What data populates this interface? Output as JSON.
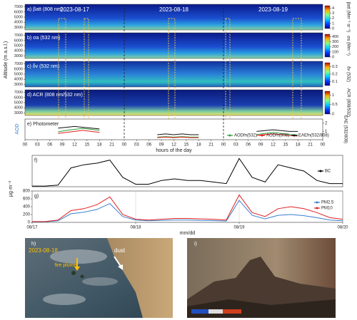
{
  "chart_data": [
    {
      "type": "heatmap",
      "ylabel": "Altitude (m a.s.l.)",
      "ylim": [
        2500,
        7500
      ],
      "yticks": [
        3000,
        4000,
        5000,
        6000,
        7000
      ],
      "dates": [
        "2023-08-17",
        "2023-08-18",
        "2023-08-19"
      ],
      "panels": [
        {
          "title": "a) βatt (808 nm)",
          "colorbar_label": "βatt (Mm⁻¹ sr⁻¹)",
          "clim": [
            0,
            4.5
          ],
          "cticks": [
            0,
            1,
            2,
            3,
            4
          ]
        },
        {
          "title": "b) σa (532 nm)",
          "colorbar_label": "σa (Mm⁻¹)",
          "clim": [
            0,
            450
          ],
          "cticks": [
            0,
            100,
            200,
            300,
            400
          ]
        },
        {
          "title": "c) δv (532 nm)",
          "colorbar_label": "δv (532)",
          "clim": [
            0.05,
            0.35
          ],
          "cticks": [
            0.1,
            0.2,
            0.3
          ]
        },
        {
          "title": "d) ACR (808 nm/532 nm)",
          "colorbar_label": "ACR (808/532)",
          "clim": [
            0,
            1.2
          ],
          "cticks": [
            0,
            0.5,
            1
          ]
        }
      ]
    },
    {
      "type": "line",
      "title": "e) Photometer",
      "ylabel": "AOD",
      "y2label": "EAE (532/808)",
      "xlabel": "hours of the day",
      "xlim": [
        0,
        72
      ],
      "xticks": [
        {
          "value": 0,
          "label": "00"
        },
        {
          "value": 3,
          "label": "03"
        },
        {
          "value": 6,
          "label": "06"
        },
        {
          "value": 9,
          "label": "09"
        },
        {
          "value": 12,
          "label": "12"
        },
        {
          "value": 15,
          "label": "15"
        },
        {
          "value": 18,
          "label": "18"
        },
        {
          "value": 21,
          "label": "21"
        },
        {
          "value": 24,
          "label": "00"
        },
        {
          "value": 27,
          "label": "03"
        },
        {
          "value": 30,
          "label": "06"
        },
        {
          "value": 33,
          "label": "09"
        },
        {
          "value": 36,
          "label": "12"
        },
        {
          "value": 39,
          "label": "15"
        },
        {
          "value": 42,
          "label": "18"
        },
        {
          "value": 45,
          "label": "21"
        },
        {
          "value": 48,
          "label": "00"
        },
        {
          "value": 51,
          "label": "03"
        },
        {
          "value": 54,
          "label": "06"
        },
        {
          "value": 57,
          "label": "09"
        },
        {
          "value": 60,
          "label": "12"
        },
        {
          "value": 63,
          "label": "15"
        },
        {
          "value": 66,
          "label": "18"
        },
        {
          "value": 69,
          "label": "21"
        },
        {
          "value": 72,
          "label": "00"
        }
      ],
      "ylim": [
        0,
        0.4
      ],
      "y2lim": [
        0,
        2.5
      ],
      "y2ticks": [
        1,
        2
      ],
      "x": [
        8,
        10,
        12,
        14,
        16,
        18,
        20,
        32,
        34,
        36,
        38,
        40,
        42,
        44,
        56,
        58,
        60,
        62,
        64,
        66,
        68
      ],
      "series": [
        {
          "name": "AODfn(532)",
          "color": "#2e9e3a",
          "values": [
            0.15,
            0.18,
            0.2,
            0.22,
            0.2,
            0.18,
            null,
            0.05,
            0.06,
            0.05,
            0.06,
            0.05,
            0.05,
            null,
            0.1,
            0.12,
            0.14,
            0.12,
            0.1,
            0.09,
            null
          ]
        },
        {
          "name": "AODfn(808)",
          "color": "#e02020",
          "values": [
            0.12,
            0.14,
            0.16,
            0.18,
            0.16,
            0.14,
            null,
            0.04,
            0.05,
            0.04,
            0.05,
            0.04,
            0.04,
            null,
            0.08,
            0.1,
            0.11,
            0.1,
            0.08,
            0.07,
            null
          ]
        },
        {
          "name": "EAEfn(532/808)",
          "color": "#111111",
          "axis": "y2",
          "values": [
            1.4,
            1.5,
            1.6,
            1.5,
            1.4,
            1.3,
            null,
            0.6,
            0.7,
            0.6,
            0.7,
            0.6,
            0.6,
            null,
            1.0,
            1.1,
            1.2,
            1.1,
            1.0,
            1.0,
            null
          ]
        }
      ]
    },
    {
      "type": "line",
      "title": "f)",
      "xlim": [
        0,
        72
      ],
      "ylim": [
        0,
        1
      ],
      "x": [
        0,
        3,
        6,
        9,
        12,
        15,
        18,
        21,
        24,
        27,
        30,
        33,
        36,
        39,
        42,
        45,
        48,
        51,
        54,
        57,
        60,
        63,
        66,
        69,
        72
      ],
      "series": [
        {
          "name": "BC",
          "color": "#000000",
          "values": [
            0.02,
            0.02,
            0.05,
            0.6,
            0.7,
            0.75,
            0.85,
            0.3,
            0.08,
            0.08,
            0.2,
            0.25,
            0.2,
            0.2,
            0.15,
            0.1,
            0.9,
            0.3,
            0.15,
            0.7,
            0.6,
            0.5,
            0.2,
            0.1,
            0.1
          ]
        }
      ]
    },
    {
      "type": "line",
      "title": "g)",
      "ylabel": "µg·m⁻³",
      "xlabel": "mm/dd",
      "xlim": [
        0,
        72
      ],
      "xticks": [
        {
          "value": 0,
          "label": "08/17"
        },
        {
          "value": 24,
          "label": "08/18"
        },
        {
          "value": 48,
          "label": "08/19"
        },
        {
          "value": 72,
          "label": "08/20"
        }
      ],
      "ylim": [
        0,
        800
      ],
      "yticks": [
        0,
        200,
        400,
        600,
        800
      ],
      "grid": true,
      "x": [
        0,
        3,
        6,
        9,
        12,
        15,
        18,
        21,
        24,
        27,
        30,
        33,
        36,
        39,
        42,
        45,
        48,
        51,
        54,
        57,
        60,
        63,
        66,
        69,
        72
      ],
      "series": [
        {
          "name": "PM2.5",
          "color": "#3a7fd0",
          "values": [
            15,
            15,
            40,
            220,
            260,
            330,
            480,
            150,
            60,
            40,
            50,
            60,
            60,
            50,
            45,
            35,
            560,
            180,
            90,
            180,
            200,
            170,
            120,
            60,
            40
          ]
        },
        {
          "name": "PM10",
          "color": "#e02020",
          "values": [
            20,
            20,
            60,
            300,
            350,
            450,
            650,
            200,
            80,
            60,
            80,
            100,
            100,
            90,
            80,
            60,
            700,
            250,
            150,
            350,
            400,
            350,
            250,
            120,
            80
          ]
        }
      ]
    }
  ],
  "photos": {
    "h": {
      "label": "h)",
      "date": "2023-08-18",
      "dust": "dust",
      "plume": "fire plume"
    },
    "i": {
      "label": "i)"
    }
  }
}
